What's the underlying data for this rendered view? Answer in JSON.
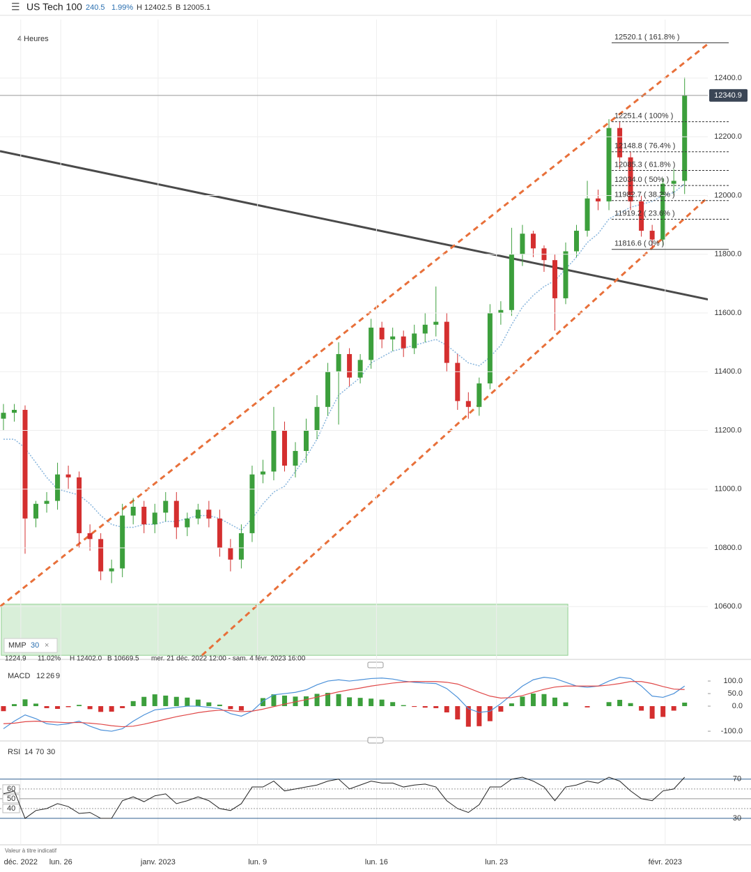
{
  "header": {
    "menu": "☰",
    "instrument": "US Tech 100",
    "change": "240.5",
    "change_pct": "1.99%",
    "high": "H 12402.5",
    "low": "B 12005.1"
  },
  "chart_data": {
    "type": "candlestick",
    "subtitle": "4 Heures",
    "xlim": [
      -0.32,
      69.14
    ],
    "xticks": [
      {
        "value": 1.6,
        "label": "déc. 2022"
      },
      {
        "value": 5.3,
        "label": "lun. 26"
      },
      {
        "value": 14.3,
        "label": "janv. 2023"
      },
      {
        "value": 23.5,
        "label": "lun. 9"
      },
      {
        "value": 34.5,
        "label": "lun. 16"
      },
      {
        "value": 45.6,
        "label": "lun. 23"
      },
      {
        "value": 61.2,
        "label": "févr. 2023"
      }
    ],
    "ylim": [
      10422.5,
      12599.4
    ],
    "yticks": [
      {
        "value": 10600,
        "label": "10600.0"
      },
      {
        "value": 10800,
        "label": "10800.0"
      },
      {
        "value": 11000,
        "label": "11000.0"
      },
      {
        "value": 11200,
        "label": "11200.0"
      },
      {
        "value": 11400,
        "label": "11400.0"
      },
      {
        "value": 11600,
        "label": "11600.0"
      },
      {
        "value": 11800,
        "label": "11800.0"
      },
      {
        "value": 12000,
        "label": "12000.0"
      },
      {
        "value": 12200,
        "label": "12200.0"
      },
      {
        "value": 12400,
        "label": "12400.0"
      }
    ],
    "grid": true,
    "up_color": "#3c9f3c",
    "down_color": "#d42f2f",
    "current_price": {
      "value": 12340.9,
      "label": "12340.9"
    },
    "open": [
      11240,
      11260,
      11270,
      10900,
      10950,
      10960,
      11050,
      11040,
      10850,
      10830,
      10720,
      10730,
      10910,
      10940,
      10880,
      10920,
      10960,
      10870,
      10900,
      10930,
      10900,
      10800,
      10760,
      10850,
      11050,
      11060,
      11200,
      11080,
      11130,
      11200,
      11280,
      11400,
      11460,
      11380,
      11440,
      11550,
      11510,
      11520,
      11480,
      11530,
      11560,
      11570,
      11430,
      11300,
      11280,
      11360,
      11600,
      11610,
      11800,
      11870,
      11820,
      11780,
      11650,
      11810,
      11880,
      11990,
      11980,
      12230,
      12130,
      11980,
      11880,
      11850,
      12040,
      12050
    ],
    "high": [
      11290,
      11290,
      11285,
      10960,
      10990,
      11090,
      11080,
      11060,
      10880,
      10850,
      10760,
      10950,
      10970,
      10960,
      10950,
      10990,
      10990,
      10920,
      10950,
      10960,
      10930,
      10830,
      10880,
      11080,
      11100,
      11280,
      11230,
      11160,
      11240,
      11320,
      11430,
      11500,
      11480,
      11460,
      11580,
      11570,
      11550,
      11540,
      11560,
      11600,
      11690,
      11600,
      11460,
      11330,
      11380,
      11630,
      11640,
      11890,
      11900,
      11880,
      11830,
      11800,
      11840,
      11900,
      12050,
      12020,
      12260,
      12250,
      12150,
      12000,
      11900,
      12060,
      12090,
      12402.5
    ],
    "low": [
      11200,
      11230,
      10780,
      10870,
      10920,
      10930,
      11000,
      10800,
      10790,
      10690,
      10680,
      10700,
      10880,
      10850,
      10850,
      10890,
      10830,
      10840,
      10880,
      10870,
      10770,
      10720,
      10730,
      10820,
      11020,
      11030,
      11060,
      11040,
      11090,
      11170,
      11250,
      11220,
      11350,
      11360,
      11410,
      11480,
      11470,
      11450,
      11460,
      11500,
      11520,
      11400,
      11270,
      11240,
      11250,
      11340,
      11560,
      11590,
      11760,
      11790,
      11740,
      11540,
      11630,
      11790,
      11860,
      11950,
      11950,
      12090,
      11950,
      11860,
      11820,
      11830,
      12000,
      12005.1
    ],
    "close": [
      11260,
      11270,
      10900,
      10950,
      10960,
      11050,
      11040,
      10850,
      10830,
      10720,
      10730,
      10910,
      10940,
      10880,
      10920,
      10960,
      10870,
      10900,
      10930,
      10900,
      10800,
      10760,
      10850,
      11050,
      11060,
      11200,
      11080,
      11130,
      11200,
      11280,
      11400,
      11460,
      11380,
      11440,
      11550,
      11510,
      11520,
      11480,
      11530,
      11560,
      11570,
      11430,
      11300,
      11280,
      11360,
      11600,
      11610,
      11800,
      11870,
      11820,
      11780,
      11650,
      11810,
      11880,
      11990,
      11980,
      12230,
      12130,
      11980,
      11880,
      11850,
      12040,
      12050,
      12340.9
    ],
    "moving_average": {
      "name": "MMP",
      "period": "30",
      "color": "#86b4dc",
      "values": [
        11170,
        11170,
        11140,
        11090,
        11040,
        11000,
        10990,
        10980,
        10950,
        10910,
        10880,
        10870,
        10870,
        10880,
        10880,
        10890,
        10890,
        10900,
        10910,
        10910,
        10900,
        10880,
        10860,
        10900,
        10950,
        10990,
        11010,
        11060,
        11110,
        11170,
        11250,
        11320,
        11350,
        11380,
        11430,
        11450,
        11470,
        11480,
        11490,
        11500,
        11510,
        11490,
        11460,
        11430,
        11420,
        11450,
        11490,
        11560,
        11620,
        11660,
        11690,
        11710,
        11750,
        11790,
        11840,
        11870,
        11920,
        11940,
        11960,
        11970,
        11980,
        12000,
        12010,
        12040
      ]
    },
    "trend_lines": [
      {
        "from": [
          -0.32,
          12151
        ],
        "to": [
          68.94,
          11617
        ],
        "color": "#4a4a4a",
        "dashed": false
      },
      {
        "from": [
          -0.32,
          10600
        ],
        "to": [
          67.98,
          12599
        ],
        "color": "#e8703a",
        "dashed": true
      },
      {
        "from": [
          18.36,
          10434
        ],
        "to": [
          68.94,
          12120
        ],
        "color": "#e8703a",
        "dashed": true
      }
    ],
    "zone": {
      "from": [
        -0.2,
        10434
      ],
      "to": [
        52.2,
        10608
      ],
      "color": "#d9efd9"
    },
    "fibonacci": [
      {
        "value": 12520.1,
        "label": "12520.1 ( 161.8% )"
      },
      {
        "value": 12251.4,
        "label": "12251.4 ( 100% )"
      },
      {
        "value": 12148.8,
        "label": "12148.8 ( 76.4% )"
      },
      {
        "value": 12085.3,
        "label": "12085.3 ( 61.8% )"
      },
      {
        "value": 12034.0,
        "label": "12034.0 ( 50% )"
      },
      {
        "value": 11982.7,
        "label": "11982.7 ( 38.2% )"
      },
      {
        "value": 11919.2,
        "label": "11919.2 ( 23.6% )"
      },
      {
        "value": 11816.6,
        "label": "11816.6 ( 0% )"
      }
    ],
    "info": [
      "1224.9",
      "11.02%",
      "H 12402.0",
      "B 10669.5",
      "mer. 21 déc. 2022 12:00 - sam. 4 févr. 2023 16:00"
    ],
    "macd": {
      "name": "MACD",
      "params": [
        "12",
        "26",
        "9"
      ],
      "ylim": [
        -136,
        139
      ],
      "yticks": [
        {
          "value": 100,
          "label": "100.0"
        },
        {
          "value": 50,
          "label": "50.0"
        },
        {
          "value": 0,
          "label": "0.0"
        },
        {
          "value": -100,
          "label": "-100.0"
        }
      ],
      "series": [
        {
          "color": "#4a90d9",
          "values": [
            -90,
            -60,
            -35,
            -50,
            -70,
            -75,
            -70,
            -60,
            -80,
            -95,
            -100,
            -90,
            -60,
            -35,
            -15,
            -10,
            -5,
            0,
            0,
            -5,
            -10,
            -30,
            -40,
            -20,
            20,
            45,
            50,
            55,
            65,
            85,
            100,
            105,
            100,
            105,
            110,
            112,
            108,
            100,
            95,
            92,
            90,
            70,
            35,
            -10,
            -25,
            -20,
            10,
            45,
            80,
            105,
            115,
            110,
            95,
            80,
            75,
            80,
            100,
            115,
            110,
            80,
            40,
            35,
            50,
            80
          ]
        },
        {
          "color": "#e04848",
          "values": [
            -70,
            -68,
            -62,
            -60,
            -62,
            -64,
            -66,
            -65,
            -68,
            -72,
            -78,
            -82,
            -80,
            -72,
            -62,
            -52,
            -42,
            -34,
            -26,
            -20,
            -16,
            -18,
            -22,
            -20,
            -12,
            -2,
            8,
            17,
            26,
            36,
            47,
            57,
            65,
            72,
            80,
            86,
            92,
            96,
            98,
            98,
            98,
            95,
            88,
            72,
            55,
            40,
            32,
            34,
            42,
            55,
            67,
            76,
            80,
            80,
            80,
            80,
            84,
            90,
            98,
            98,
            90,
            78,
            68,
            66
          ]
        }
      ],
      "histogram": [
        -20,
        8,
        27,
        10,
        -8,
        -11,
        -4,
        5,
        -12,
        -23,
        -22,
        -8,
        20,
        37,
        47,
        42,
        37,
        34,
        26,
        15,
        6,
        -12,
        -18,
        0,
        32,
        47,
        42,
        38,
        39,
        49,
        53,
        48,
        35,
        33,
        30,
        26,
        16,
        4,
        -3,
        -6,
        -8,
        -25,
        -53,
        -82,
        -80,
        -60,
        -22,
        11,
        38,
        50,
        48,
        34,
        15,
        0,
        -5,
        0,
        16,
        25,
        12,
        -18,
        -50,
        -43,
        -18,
        14
      ]
    },
    "rsi": {
      "name": "RSI",
      "params": [
        "14",
        "70",
        "30"
      ],
      "ylim": [
        3,
        104
      ],
      "yticks": [
        70,
        30
      ],
      "left_ticks": [
        60,
        50,
        40
      ],
      "color": "#222222",
      "values": [
        55,
        58,
        30,
        38,
        40,
        45,
        42,
        35,
        36,
        30,
        30,
        48,
        52,
        47,
        53,
        55,
        45,
        48,
        52,
        48,
        40,
        38,
        45,
        62,
        62,
        68,
        58,
        60,
        62,
        64,
        68,
        70,
        60,
        64,
        68,
        66,
        66,
        62,
        64,
        65,
        62,
        48,
        40,
        36,
        44,
        62,
        62,
        70,
        72,
        68,
        62,
        48,
        62,
        64,
        68,
        66,
        72,
        68,
        58,
        50,
        48,
        58,
        60,
        72
      ]
    },
    "footnote": "Valeur à titre indicatif"
  }
}
